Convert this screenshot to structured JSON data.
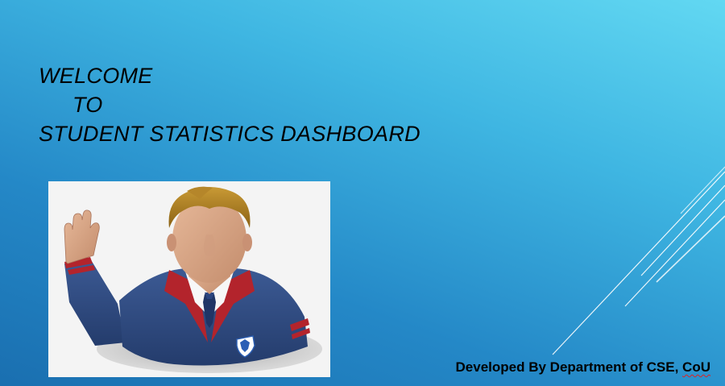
{
  "slide": {
    "title_line_1": "WELCOME",
    "title_line_2": "TO",
    "title_line_3": "STUDENT STATISTICS DASHBOARD",
    "footer_prefix": "Developed By Department of CSE, ",
    "footer_org": "CoU"
  },
  "picture": {
    "icon": "waving-student-icon"
  },
  "colors": {
    "background_light": "#62d8f2",
    "background_dark": "#1a6fb0",
    "text": "#000000",
    "blazer": "#2f4a7e",
    "lapel": "#b3242c",
    "hair": "#a77b22",
    "skin": "#d7a88a"
  }
}
